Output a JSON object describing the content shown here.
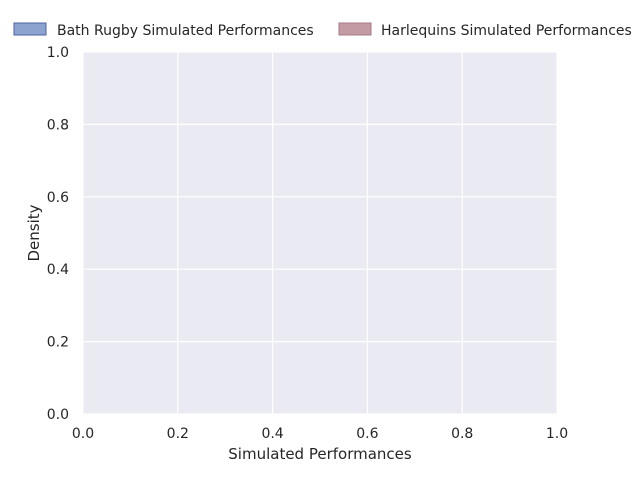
{
  "chart_data": {
    "type": "area",
    "title": "",
    "xlabel": "Simulated Performances",
    "ylabel": "Density",
    "xlim": [
      0.0,
      1.0
    ],
    "ylim": [
      0.0,
      1.0
    ],
    "xticks": [
      "0.0",
      "0.2",
      "0.4",
      "0.6",
      "0.8",
      "1.0"
    ],
    "yticks": [
      "0.0",
      "0.2",
      "0.4",
      "0.6",
      "0.8",
      "1.0"
    ],
    "grid": true,
    "legend_position": "top",
    "series": [
      {
        "name": "Bath Rugby Simulated Performances",
        "color": "#8da3cf",
        "edge_color": "#4c62a4",
        "values": []
      },
      {
        "name": "Harlequins Simulated Performances",
        "color": "#c39ba5",
        "edge_color": "#a77b87",
        "values": []
      }
    ],
    "colors": {
      "plot_background": "#eaeaf2",
      "grid": "#ffffff",
      "text": "#262626"
    }
  }
}
